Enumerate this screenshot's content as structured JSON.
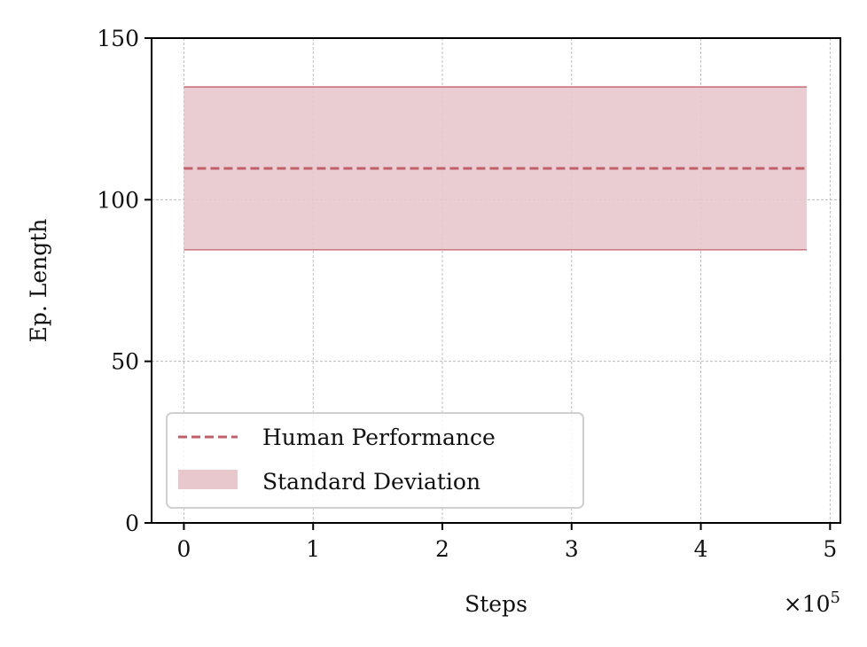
{
  "chart_data": {
    "type": "line",
    "xlabel": "Steps",
    "ylabel": "Ep. Length",
    "x_offset_label": "×10",
    "x_offset_exponent": "5",
    "xlim": [
      -0.25,
      5.08
    ],
    "ylim": [
      0,
      150
    ],
    "x_ticks": [
      0,
      1,
      2,
      3,
      4,
      5
    ],
    "x_tick_labels": [
      "0",
      "1",
      "2",
      "3",
      "4",
      "5"
    ],
    "y_ticks": [
      0,
      50,
      100,
      150
    ],
    "y_tick_labels": [
      "0",
      "50",
      "100",
      "150"
    ],
    "grid": true,
    "legend_position": "lower-left",
    "series": [
      {
        "name": "Human Performance",
        "style": "dashed",
        "color": "#c0606a",
        "x": [
          0,
          4.82
        ],
        "y": [
          109.7,
          109.7
        ]
      }
    ],
    "bands": [
      {
        "name": "Standard Deviation",
        "color": "#e8c8cd",
        "edge_color": "#c0606a",
        "x": [
          0,
          4.82
        ],
        "lower": [
          84.5,
          84.5
        ],
        "upper": [
          134.9,
          134.9
        ]
      }
    ]
  }
}
